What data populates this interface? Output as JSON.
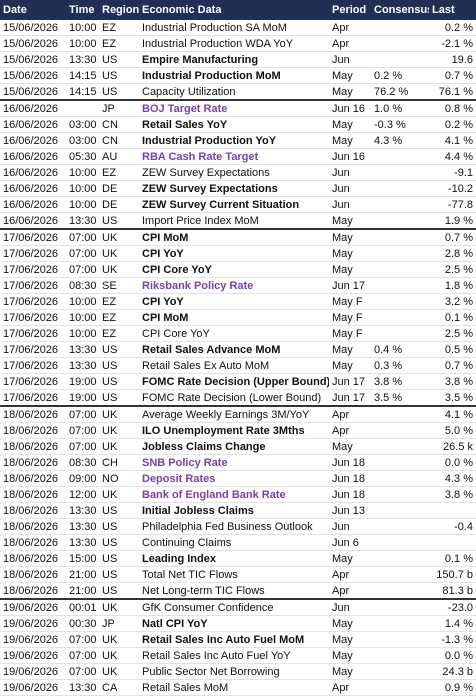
{
  "table": {
    "columns": [
      "Date",
      "Time",
      "Region",
      "Economic Data",
      "Period",
      "Consensus",
      "Last"
    ],
    "keys": [
      "date",
      "time",
      "region",
      "event",
      "period",
      "consensus",
      "last"
    ],
    "rows": [
      {
        "date": "15/06/2026",
        "time": "10:00",
        "region": "EZ",
        "event": "Industrial Production SA MoM",
        "period": "Apr",
        "consensus": null,
        "last": "0.2 %"
      },
      {
        "date": "15/06/2026",
        "time": "10:00",
        "region": "EZ",
        "event": "Industrial Production WDA YoY",
        "period": "Apr",
        "consensus": null,
        "last": "-2.1 %"
      },
      {
        "date": "15/06/2026",
        "time": "13:30",
        "region": "US",
        "event": "Empire Manufacturing",
        "period": "Jun",
        "consensus": null,
        "last": "19.6",
        "style": "bold"
      },
      {
        "date": "15/06/2026",
        "time": "14:15",
        "region": "US",
        "event": "Industrial Production MoM",
        "period": "May",
        "consensus": "0.2 %",
        "last": "0.7 %",
        "style": "bold"
      },
      {
        "date": "15/06/2026",
        "time": "14:15",
        "region": "US",
        "event": "Capacity Utilization",
        "period": "May",
        "consensus": "76.2 %",
        "last": "76.1 %"
      },
      {
        "date": "16/06/2026",
        "time": null,
        "region": "JP",
        "event": "BOJ Target Rate",
        "period": "Jun 16",
        "consensus": "1.0 %",
        "last": "0.8 %",
        "style": "policy"
      },
      {
        "date": "16/06/2026",
        "time": "03:00",
        "region": "CN",
        "event": "Retail Sales YoY",
        "period": "May",
        "consensus": "-0.3 %",
        "last": "0.2 %",
        "style": "bold"
      },
      {
        "date": "16/06/2026",
        "time": "03:00",
        "region": "CN",
        "event": "Industrial Production YoY",
        "period": "May",
        "consensus": "4.3 %",
        "last": "4.1 %",
        "style": "bold"
      },
      {
        "date": "16/06/2026",
        "time": "05:30",
        "region": "AU",
        "event": "RBA Cash Rate Target",
        "period": "Jun 16",
        "consensus": null,
        "last": "4.4 %",
        "style": "policy"
      },
      {
        "date": "16/06/2026",
        "time": "10:00",
        "region": "EZ",
        "event": "ZEW Survey Expectations",
        "period": "Jun",
        "consensus": null,
        "last": "-9.1"
      },
      {
        "date": "16/06/2026",
        "time": "10:00",
        "region": "DE",
        "event": "ZEW Survey Expectations",
        "period": "Jun",
        "consensus": null,
        "last": "-10.2",
        "style": "bold"
      },
      {
        "date": "16/06/2026",
        "time": "10:00",
        "region": "DE",
        "event": "ZEW Survey Current Situation",
        "period": "Jun",
        "consensus": null,
        "last": "-77.8",
        "style": "bold"
      },
      {
        "date": "16/06/2026",
        "time": "13:30",
        "region": "US",
        "event": "Import Price Index MoM",
        "period": "May",
        "consensus": null,
        "last": "1.9 %"
      },
      {
        "date": "17/06/2026",
        "time": "07:00",
        "region": "UK",
        "event": "CPI MoM",
        "period": "May",
        "consensus": null,
        "last": "0.7 %",
        "style": "bold"
      },
      {
        "date": "17/06/2026",
        "time": "07:00",
        "region": "UK",
        "event": "CPI YoY",
        "period": "May",
        "consensus": null,
        "last": "2.8 %",
        "style": "bold"
      },
      {
        "date": "17/06/2026",
        "time": "07:00",
        "region": "UK",
        "event": "CPI Core YoY",
        "period": "May",
        "consensus": null,
        "last": "2.5 %",
        "style": "bold"
      },
      {
        "date": "17/06/2026",
        "time": "08:30",
        "region": "SE",
        "event": "Riksbank Policy Rate",
        "period": "Jun 17",
        "consensus": null,
        "last": "1.8 %",
        "style": "policy"
      },
      {
        "date": "17/06/2026",
        "time": "10:00",
        "region": "EZ",
        "event": "CPI YoY",
        "period": "May F",
        "consensus": null,
        "last": "3.2 %",
        "style": "bold"
      },
      {
        "date": "17/06/2026",
        "time": "10:00",
        "region": "EZ",
        "event": "CPI MoM",
        "period": "May F",
        "consensus": null,
        "last": "0.1 %",
        "style": "bold"
      },
      {
        "date": "17/06/2026",
        "time": "10:00",
        "region": "EZ",
        "event": "CPI Core YoY",
        "period": "May F",
        "consensus": null,
        "last": "2.5 %"
      },
      {
        "date": "17/06/2026",
        "time": "13:30",
        "region": "US",
        "event": "Retail Sales Advance MoM",
        "period": "May",
        "consensus": "0.4 %",
        "last": "0.5 %",
        "style": "bold"
      },
      {
        "date": "17/06/2026",
        "time": "13:30",
        "region": "US",
        "event": "Retail Sales Ex Auto MoM",
        "period": "May",
        "consensus": "0.3 %",
        "last": "0.7 %"
      },
      {
        "date": "17/06/2026",
        "time": "19:00",
        "region": "US",
        "event": "FOMC Rate Decision (Upper Bound)",
        "period": "Jun 17",
        "consensus": "3.8 %",
        "last": "3.8 %",
        "style": "bold"
      },
      {
        "date": "17/06/2026",
        "time": "19:00",
        "region": "US",
        "event": "FOMC Rate Decision (Lower Bound)",
        "period": "Jun 17",
        "consensus": "3.5 %",
        "last": "3.5 %"
      },
      {
        "date": "18/06/2026",
        "time": "07:00",
        "region": "UK",
        "event": "Average Weekly Earnings 3M/YoY",
        "period": "Apr",
        "consensus": null,
        "last": "4.1 %"
      },
      {
        "date": "18/06/2026",
        "time": "07:00",
        "region": "UK",
        "event": "ILO Unemployment Rate 3Mths",
        "period": "Apr",
        "consensus": null,
        "last": "5.0 %",
        "style": "bold"
      },
      {
        "date": "18/06/2026",
        "time": "07:00",
        "region": "UK",
        "event": "Jobless Claims Change",
        "period": "May",
        "consensus": null,
        "last": "26.5 k",
        "style": "bold"
      },
      {
        "date": "18/06/2026",
        "time": "08:30",
        "region": "CH",
        "event": "SNB Policy Rate",
        "period": "Jun 18",
        "consensus": null,
        "last": "0.0 %",
        "style": "policy"
      },
      {
        "date": "18/06/2026",
        "time": "09:00",
        "region": "NO",
        "event": "Deposit Rates",
        "period": "Jun 18",
        "consensus": null,
        "last": "4.3 %",
        "style": "policy"
      },
      {
        "date": "18/06/2026",
        "time": "12:00",
        "region": "UK",
        "event": "Bank of England Bank Rate",
        "period": "Jun 18",
        "consensus": null,
        "last": "3.8 %",
        "style": "policy"
      },
      {
        "date": "18/06/2026",
        "time": "13:30",
        "region": "US",
        "event": "Initial Jobless Claims",
        "period": "Jun 13",
        "consensus": null,
        "last": null,
        "style": "bold"
      },
      {
        "date": "18/06/2026",
        "time": "13:30",
        "region": "US",
        "event": "Philadelphia Fed Business Outlook",
        "period": "Jun",
        "consensus": null,
        "last": "-0.4"
      },
      {
        "date": "18/06/2026",
        "time": "13:30",
        "region": "US",
        "event": "Continuing Claims",
        "period": "Jun 6",
        "consensus": null,
        "last": null
      },
      {
        "date": "18/06/2026",
        "time": "15:00",
        "region": "US",
        "event": "Leading Index",
        "period": "May",
        "consensus": null,
        "last": "0.1 %",
        "style": "bold"
      },
      {
        "date": "18/06/2026",
        "time": "21:00",
        "region": "US",
        "event": "Total Net TIC Flows",
        "period": "Apr",
        "consensus": null,
        "last": "150.7 b"
      },
      {
        "date": "18/06/2026",
        "time": "21:00",
        "region": "US",
        "event": "Net Long-term TIC Flows",
        "period": "Apr",
        "consensus": null,
        "last": "81.3 b"
      },
      {
        "date": "19/06/2026",
        "time": "00:01",
        "region": "UK",
        "event": "GfK Consumer Confidence",
        "period": "Jun",
        "consensus": null,
        "last": "-23.0"
      },
      {
        "date": "19/06/2026",
        "time": "00:30",
        "region": "JP",
        "event": "Natl CPI YoY",
        "period": "May",
        "consensus": null,
        "last": "1.4 %",
        "style": "bold"
      },
      {
        "date": "19/06/2026",
        "time": "07:00",
        "region": "UK",
        "event": "Retail Sales Inc Auto Fuel MoM",
        "period": "May",
        "consensus": null,
        "last": "-1.3 %",
        "style": "bold"
      },
      {
        "date": "19/06/2026",
        "time": "07:00",
        "region": "UK",
        "event": "Retail Sales Inc Auto Fuel YoY",
        "period": "May",
        "consensus": null,
        "last": "0.0 %"
      },
      {
        "date": "19/06/2026",
        "time": "07:00",
        "region": "UK",
        "event": "Public Sector Net Borrowing",
        "period": "May",
        "consensus": null,
        "last": "24.3 b"
      },
      {
        "date": "19/06/2026",
        "time": "13:30",
        "region": "CA",
        "event": "Retail Sales MoM",
        "period": "Apr",
        "consensus": null,
        "last": "0.9 %"
      }
    ]
  }
}
